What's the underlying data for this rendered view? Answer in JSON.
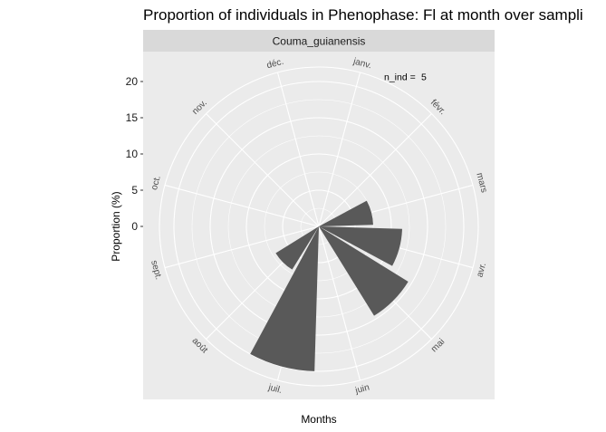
{
  "chart_data": {
    "type": "bar",
    "coord": "polar",
    "title": "Proportion of individuals in Phenophase: Fl at month over sampli",
    "facet_label": "Couma_guianensis",
    "xlabel": "Months",
    "ylabel": "Proportion (%)",
    "ylim": [
      0,
      22
    ],
    "y_ticks": [
      0,
      5,
      10,
      15,
      20
    ],
    "y_tick_labels": [
      "0",
      "5",
      "10",
      "15",
      "20"
    ],
    "categories": [
      "janv.",
      "févr.",
      "mars",
      "avr.",
      "mai",
      "juin",
      "juil.",
      "août",
      "sept.",
      "oct.",
      "nov.",
      "déc."
    ],
    "values": [
      0,
      0,
      7.5,
      11.5,
      14.5,
      0,
      20,
      7,
      0,
      0,
      0,
      0
    ],
    "annotation": {
      "label": "n_ind =",
      "value": "5"
    },
    "colors": {
      "bar": "#595959",
      "panel": "#ebebeb",
      "grid": "#ffffff",
      "strip": "#d9d9d9"
    },
    "grid": true,
    "legend": "none"
  }
}
